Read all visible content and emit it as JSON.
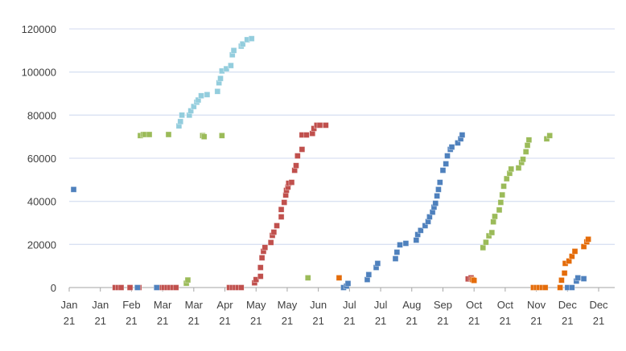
{
  "chart_data": {
    "type": "scatter",
    "title": "",
    "xlabel": "",
    "ylabel": "",
    "x_unit": "day of year 2021 (0 = Jan 1)",
    "xlim": [
      0,
      357
    ],
    "ylim": [
      0,
      120000
    ],
    "y_ticks": [
      0,
      20000,
      40000,
      60000,
      80000,
      100000,
      120000
    ],
    "y_tick_labels": [
      "0",
      "20000",
      "40000",
      "60000",
      "80000",
      "100000",
      "120000"
    ],
    "x_ticks": [
      0,
      21,
      42,
      63,
      84,
      105,
      126,
      147,
      168,
      189,
      210,
      231,
      252,
      273,
      294,
      315,
      336,
      357
    ],
    "x_tick_labels": [
      {
        "m": "Jan",
        "y": "21"
      },
      {
        "m": "Jan",
        "y": "21"
      },
      {
        "m": "Feb",
        "y": "21"
      },
      {
        "m": "Mar",
        "y": "21"
      },
      {
        "m": "Mar",
        "y": "21"
      },
      {
        "m": "Apr",
        "y": "21"
      },
      {
        "m": "May",
        "y": "21"
      },
      {
        "m": "May",
        "y": "21"
      },
      {
        "m": "Jun",
        "y": "21"
      },
      {
        "m": "Jul",
        "y": "21"
      },
      {
        "m": "Jul",
        "y": "21"
      },
      {
        "m": "Aug",
        "y": "21"
      },
      {
        "m": "Sep",
        "y": "21"
      },
      {
        "m": "Oct",
        "y": "21"
      },
      {
        "m": "Oct",
        "y": "21"
      },
      {
        "m": "Nov",
        "y": "21"
      },
      {
        "m": "Dec",
        "y": "21"
      },
      {
        "m": "Dec",
        "y": "21"
      }
    ],
    "grid": "horizontal",
    "legend": "none",
    "series": [
      {
        "name": "light-blue",
        "color": "#93CDDD",
        "points": [
          [
            74,
            75000
          ],
          [
            75,
            77000
          ],
          [
            76,
            80000
          ],
          [
            81,
            80000
          ],
          [
            82,
            82000
          ],
          [
            84,
            84000
          ],
          [
            86,
            86000
          ],
          [
            87,
            87000
          ],
          [
            89,
            89000
          ],
          [
            93,
            89500
          ],
          [
            100,
            91000
          ],
          [
            101,
            95000
          ],
          [
            102,
            97000
          ],
          [
            103,
            100500
          ],
          [
            106,
            101500
          ],
          [
            109,
            103000
          ],
          [
            110,
            108000
          ],
          [
            111,
            110000
          ],
          [
            116,
            112000
          ],
          [
            117,
            113000
          ],
          [
            120,
            115000
          ],
          [
            123,
            115500
          ]
        ]
      },
      {
        "name": "green",
        "color": "#9BBB59",
        "points": [
          [
            48,
            70500
          ],
          [
            50,
            71000
          ],
          [
            51,
            71000
          ],
          [
            54,
            71000
          ],
          [
            67,
            71000
          ],
          [
            90,
            70500
          ],
          [
            91,
            70000
          ],
          [
            103,
            70500
          ],
          [
            79,
            2000
          ],
          [
            80,
            3500
          ],
          [
            161,
            4500
          ],
          [
            279,
            18500
          ],
          [
            281,
            21000
          ],
          [
            283,
            24000
          ],
          [
            285,
            25500
          ],
          [
            286,
            30500
          ],
          [
            287,
            33000
          ],
          [
            290,
            36000
          ],
          [
            291,
            39500
          ],
          [
            292,
            43000
          ],
          [
            293,
            47000
          ],
          [
            295,
            50500
          ],
          [
            297,
            53000
          ],
          [
            298,
            55000
          ],
          [
            303,
            55500
          ],
          [
            305,
            58000
          ],
          [
            306,
            59500
          ],
          [
            308,
            63000
          ],
          [
            309,
            66000
          ],
          [
            310,
            68500
          ],
          [
            322,
            69000
          ],
          [
            324,
            70500
          ]
        ]
      },
      {
        "name": "red",
        "color": "#C0504D",
        "points": [
          [
            31,
            0
          ],
          [
            33,
            0
          ],
          [
            35,
            0
          ],
          [
            41,
            0
          ],
          [
            47,
            0
          ],
          [
            60,
            0
          ],
          [
            62,
            0
          ],
          [
            64,
            0
          ],
          [
            66,
            0
          ],
          [
            68,
            0
          ],
          [
            70,
            0
          ],
          [
            72,
            0
          ],
          [
            108,
            0
          ],
          [
            110,
            0
          ],
          [
            112,
            0
          ],
          [
            114,
            0
          ],
          [
            116,
            0
          ],
          [
            125,
            2200
          ],
          [
            126,
            3700
          ],
          [
            129,
            5200
          ],
          [
            129,
            9300
          ],
          [
            130,
            13800
          ],
          [
            131,
            16800
          ],
          [
            132,
            18600
          ],
          [
            136,
            20900
          ],
          [
            137,
            24200
          ],
          [
            138,
            25700
          ],
          [
            140,
            28700
          ],
          [
            143,
            32800
          ],
          [
            143,
            36200
          ],
          [
            145,
            39500
          ],
          [
            146,
            42900
          ],
          [
            146.5,
            45100
          ],
          [
            147.5,
            46600
          ],
          [
            148,
            48400
          ],
          [
            150,
            48800
          ],
          [
            152,
            54400
          ],
          [
            153,
            56600
          ],
          [
            154,
            61100
          ],
          [
            157,
            64100
          ],
          [
            157,
            70800
          ],
          [
            160,
            70800
          ],
          [
            164,
            71500
          ],
          [
            165,
            73800
          ],
          [
            167,
            75300
          ],
          [
            169,
            75300
          ],
          [
            173,
            75300
          ],
          [
            269,
            4000
          ],
          [
            271,
            4500
          ]
        ]
      },
      {
        "name": "blue",
        "color": "#4F81BD",
        "points": [
          [
            3,
            45500
          ],
          [
            46,
            0
          ],
          [
            59,
            0
          ],
          [
            185,
            0
          ],
          [
            187,
            700
          ],
          [
            188,
            1900
          ],
          [
            201,
            3700
          ],
          [
            202,
            6000
          ],
          [
            207,
            9300
          ],
          [
            208,
            11200
          ],
          [
            220,
            13400
          ],
          [
            221,
            16400
          ],
          [
            223,
            19800
          ],
          [
            227,
            20500
          ],
          [
            234,
            22000
          ],
          [
            235,
            24600
          ],
          [
            237,
            26500
          ],
          [
            240,
            28700
          ],
          [
            242,
            30600
          ],
          [
            243,
            32800
          ],
          [
            245,
            35000
          ],
          [
            246,
            37300
          ],
          [
            247,
            39100
          ],
          [
            248,
            42500
          ],
          [
            249,
            45500
          ],
          [
            250,
            48800
          ],
          [
            252,
            54400
          ],
          [
            254,
            57400
          ],
          [
            255,
            61100
          ],
          [
            257,
            64100
          ],
          [
            258,
            65200
          ],
          [
            262,
            67100
          ],
          [
            264,
            69000
          ],
          [
            265,
            70800
          ],
          [
            336,
            0
          ],
          [
            339,
            0
          ],
          [
            342,
            3000
          ],
          [
            343,
            4500
          ],
          [
            347,
            4100
          ]
        ]
      },
      {
        "name": "orange",
        "color": "#E46C0A",
        "points": [
          [
            182,
            4500
          ],
          [
            272,
            3700
          ],
          [
            273,
            3300
          ],
          [
            313,
            0
          ],
          [
            315,
            0
          ],
          [
            317,
            0
          ],
          [
            319,
            0
          ],
          [
            321,
            0
          ],
          [
            331,
            0
          ],
          [
            332,
            3400
          ],
          [
            334,
            6700
          ],
          [
            334.5,
            11200
          ],
          [
            337,
            12300
          ],
          [
            339,
            14500
          ],
          [
            341,
            16800
          ],
          [
            347,
            19000
          ],
          [
            349,
            21200
          ],
          [
            350,
            22400
          ]
        ]
      }
    ]
  }
}
